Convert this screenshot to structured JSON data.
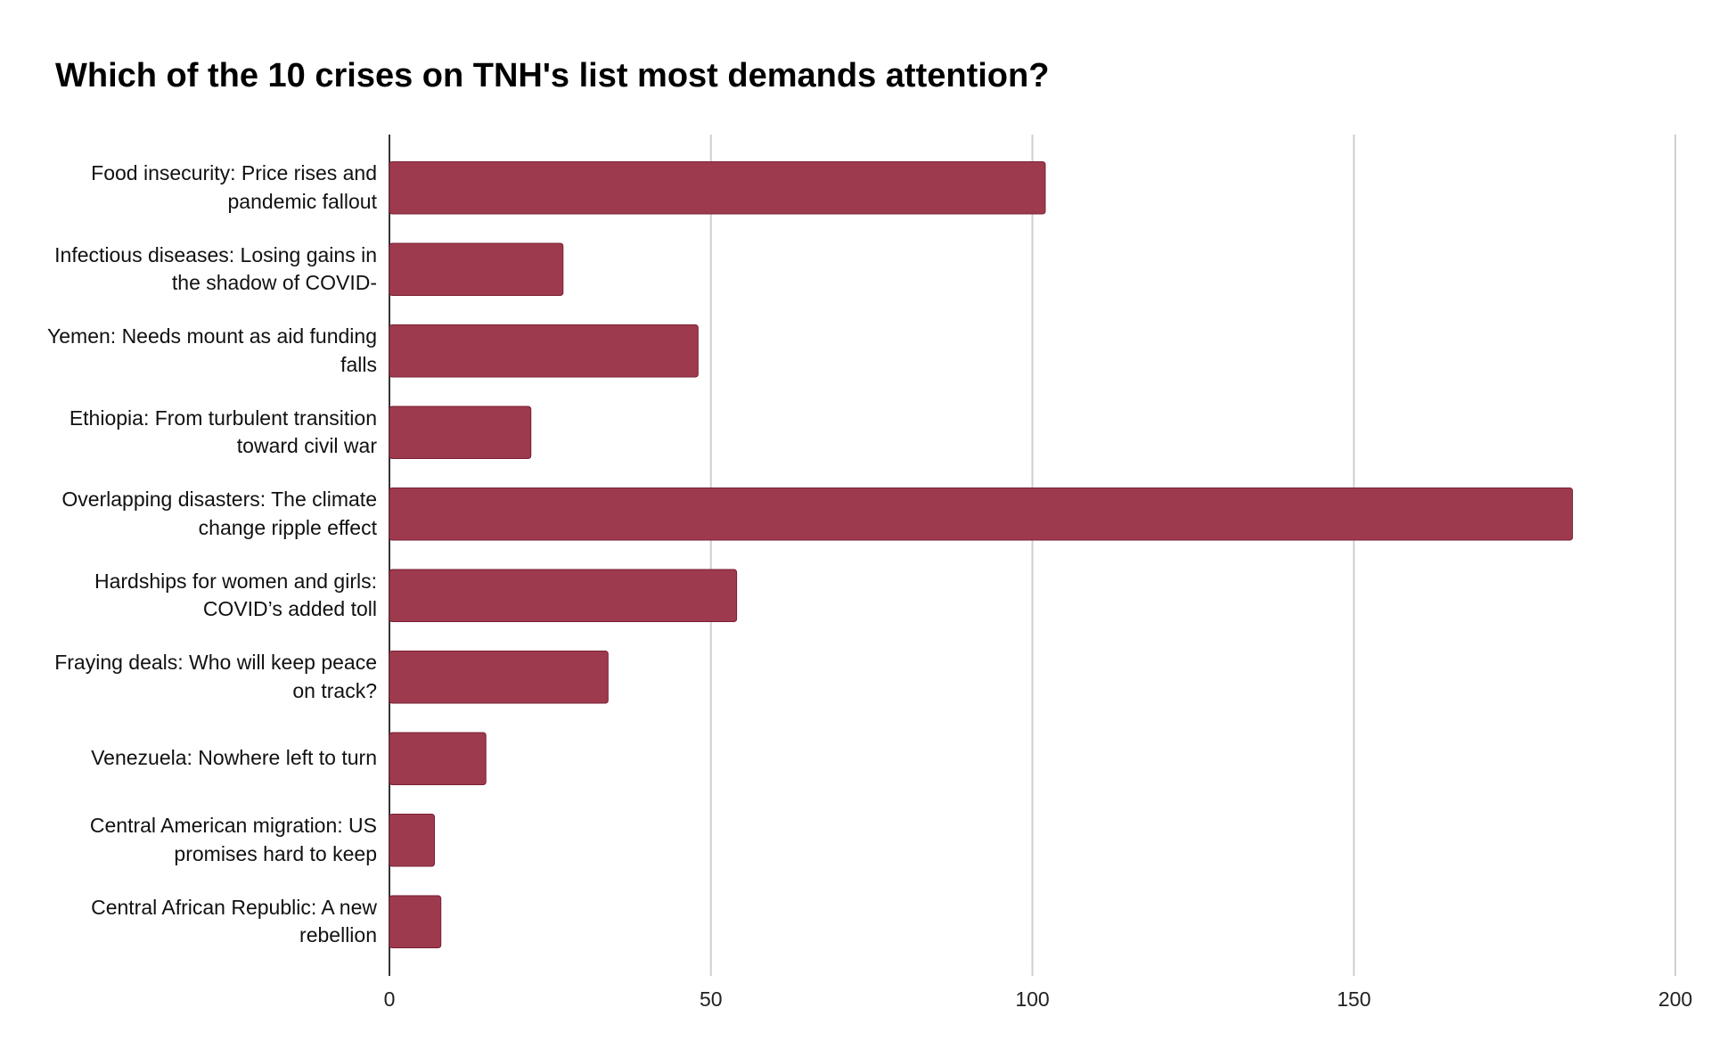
{
  "chart_data": {
    "type": "bar",
    "orientation": "horizontal",
    "title": "Which of the 10 crises on TNH's list most demands attention?",
    "categories": [
      "Food insecurity: Price rises and pandemic fallout",
      "Infectious diseases: Losing gains in the shadow of COVID-",
      "Yemen: Needs mount as aid funding falls",
      "Ethiopia: From turbulent transition toward civil war",
      "Overlapping disasters: The climate change ripple effect",
      "Hardships for women and girls: COVID’s added toll",
      "Fraying deals: Who will keep peace on track?",
      "Venezuela: Nowhere left to turn",
      "Central American migration: US promises hard to keep",
      "Central African Republic: A new rebellion"
    ],
    "values": [
      102,
      27,
      48,
      22,
      184,
      54,
      34,
      15,
      7,
      8
    ],
    "color": "#9e3a4e",
    "xlim": [
      0,
      200
    ],
    "xticks": [
      0,
      50,
      100,
      150,
      200
    ],
    "grid": true
  }
}
